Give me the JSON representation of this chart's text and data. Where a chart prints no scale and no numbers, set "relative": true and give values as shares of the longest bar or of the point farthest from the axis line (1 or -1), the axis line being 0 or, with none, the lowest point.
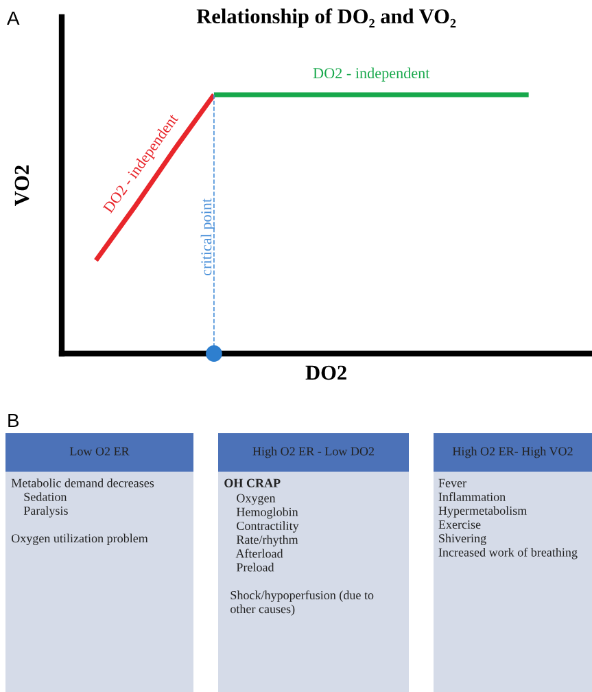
{
  "chart_data": [
    {
      "type": "line",
      "title": "Relationship of DO₂ and VO₂",
      "xlabel": "DO2",
      "ylabel": "VO2",
      "relative": true,
      "annotations": [
        "A",
        "critical point"
      ],
      "categories": [
        null,
        null,
        null,
        null,
        null,
        null,
        null,
        null,
        null,
        null,
        null,
        null
      ],
      "series": [
        {
          "name": "DO2 - independent",
          "color": "#e8262b",
          "values": [
            0.36,
            0.57,
            0.79,
            1,
            null,
            null,
            null,
            null,
            null,
            null,
            null,
            null
          ]
        },
        {
          "name": "DO2 - independent",
          "color": "#17a84b",
          "values": [
            null,
            null,
            null,
            1,
            1,
            1,
            1,
            1,
            1,
            1,
            1,
            1
          ]
        }
      ]
    },
    {
      "type": "other",
      "title": "Low O2 ER",
      "annotations": [
        "B",
        "Metabolic demand decreases\n    Sedation\n    Paralysis\n\nOxygen utilization problem"
      ]
    },
    {
      "type": "other",
      "title": "High O2 ER - Low DO2",
      "subtitle": "OH CRAP",
      "annotations": [
        "    Oxygen\n    Hemoglobin\n    Contractility\n    Rate/rhythm\n    Afterload\n    Preload\n\n  Shock/hypoperfusion (due to\n  other causes)"
      ]
    },
    {
      "type": "other",
      "title": "High O2 ER- High VO2",
      "annotations": [
        "Fever\nInflammation\nHypermetabolism\nExercise\nShivering\nIncreased work of breathing"
      ]
    }
  ]
}
